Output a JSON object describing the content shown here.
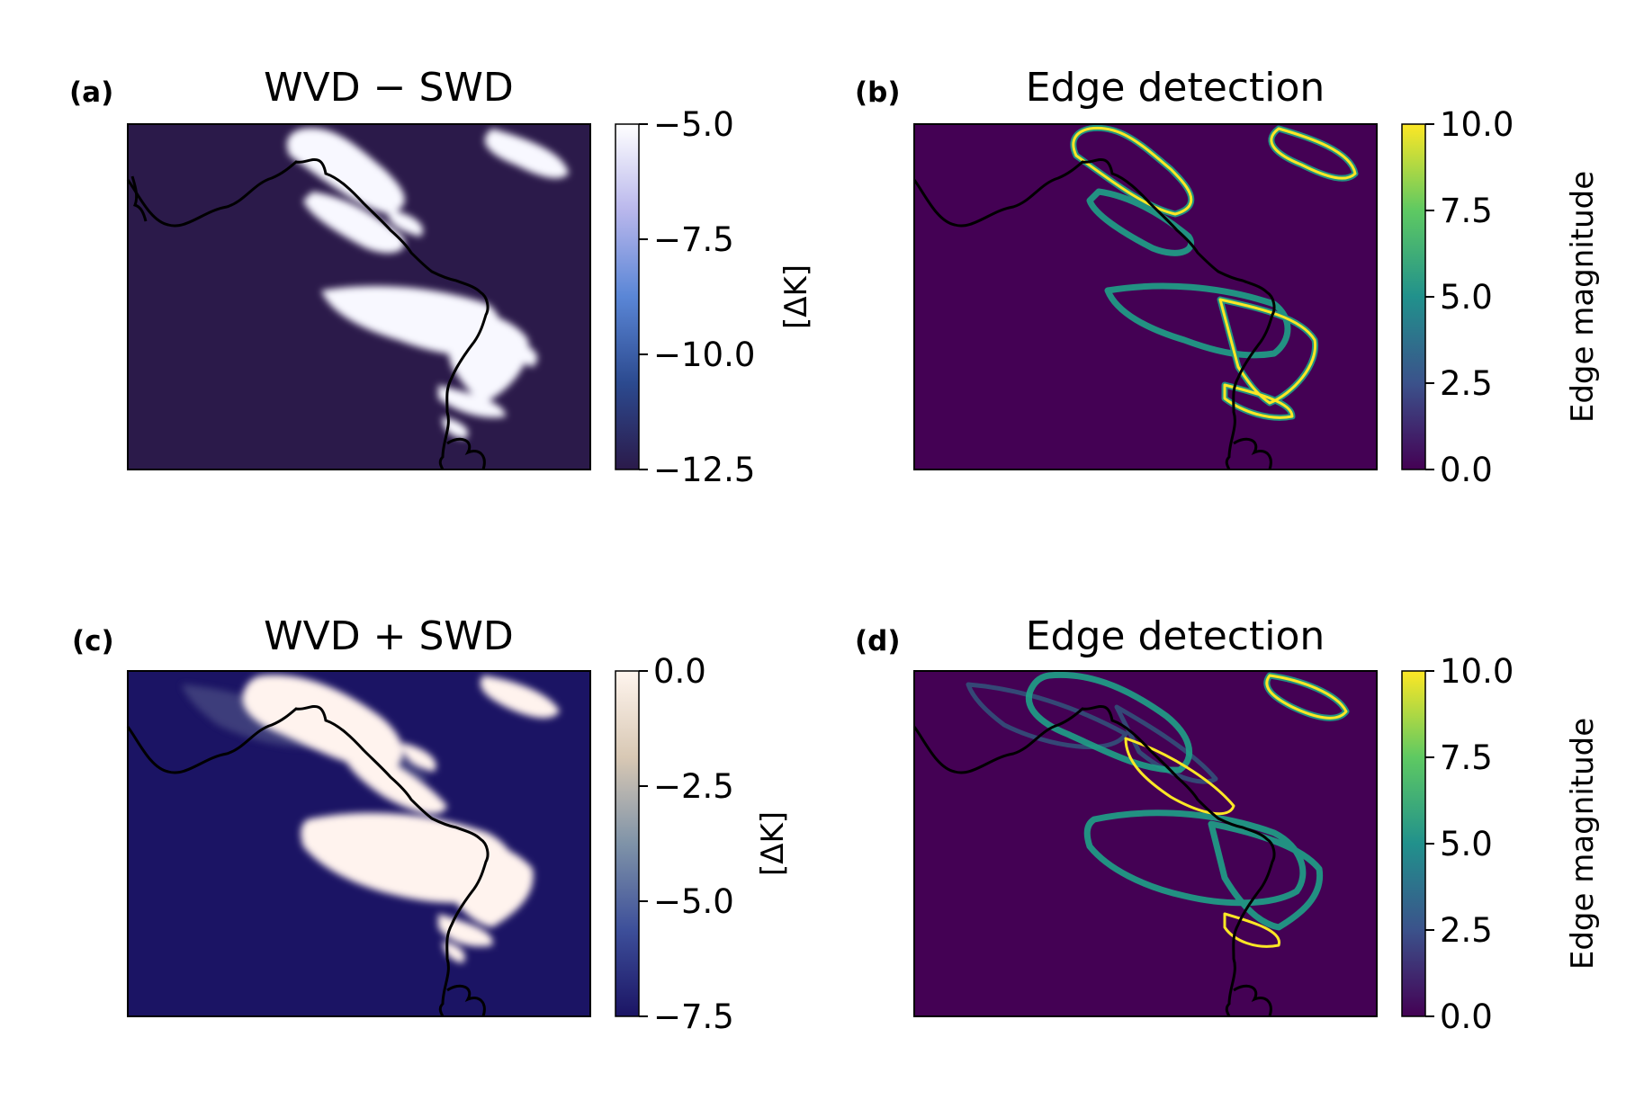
{
  "chart_data": [
    {
      "type": "heatmap",
      "panel_label": "(a)",
      "title": "WVD − SWD",
      "colorbar": {
        "label": "[ΔK]",
        "range": [
          -12.5,
          -5.0
        ],
        "ticks": [
          "−5.0",
          "−7.5",
          "−10.0",
          "−12.5"
        ],
        "tick_values": [
          -5.0,
          -7.5,
          -10.0,
          -12.5
        ],
        "colors": [
          "#2b1a4a",
          "#2c4a8f",
          "#5a86d6",
          "#b9b7ec",
          "#ffffff"
        ]
      },
      "background_color": "#2b1a4a",
      "feature_color": "#f8f8ff"
    },
    {
      "type": "heatmap",
      "panel_label": "(b)",
      "title": "Edge detection",
      "colorbar": {
        "label": "Edge magnitude",
        "range": [
          0.0,
          10.0
        ],
        "ticks": [
          "10.0",
          "7.5",
          "5.0",
          "2.5",
          "0.0"
        ],
        "tick_values": [
          10.0,
          7.5,
          5.0,
          2.5,
          0.0
        ],
        "colors": [
          "#440154",
          "#3b528b",
          "#21918c",
          "#5ec962",
          "#fde725"
        ]
      },
      "background_color": "#440154",
      "feature_color": "#fde725"
    },
    {
      "type": "heatmap",
      "panel_label": "(c)",
      "title": "WVD + SWD",
      "colorbar": {
        "label": "[ΔK]",
        "range": [
          -7.5,
          0.0
        ],
        "ticks": [
          "0.0",
          "−2.5",
          "−5.0",
          "−7.5"
        ],
        "tick_values": [
          0.0,
          -2.5,
          -5.0,
          -7.5
        ],
        "colors": [
          "#1b1464",
          "#3d4f9a",
          "#7f93a8",
          "#d8c8b4",
          "#fff5ee"
        ]
      },
      "background_color": "#1b1464",
      "feature_color": "#fff3ee"
    },
    {
      "type": "heatmap",
      "panel_label": "(d)",
      "title": "Edge detection",
      "colorbar": {
        "label": "Edge magnitude",
        "range": [
          0.0,
          10.0
        ],
        "ticks": [
          "10.0",
          "7.5",
          "5.0",
          "2.5",
          "0.0"
        ],
        "tick_values": [
          10.0,
          7.5,
          5.0,
          2.5,
          0.0
        ],
        "colors": [
          "#440154",
          "#3b528b",
          "#21918c",
          "#5ec962",
          "#fde725"
        ]
      },
      "background_color": "#440154",
      "feature_color": "#fde725"
    }
  ]
}
